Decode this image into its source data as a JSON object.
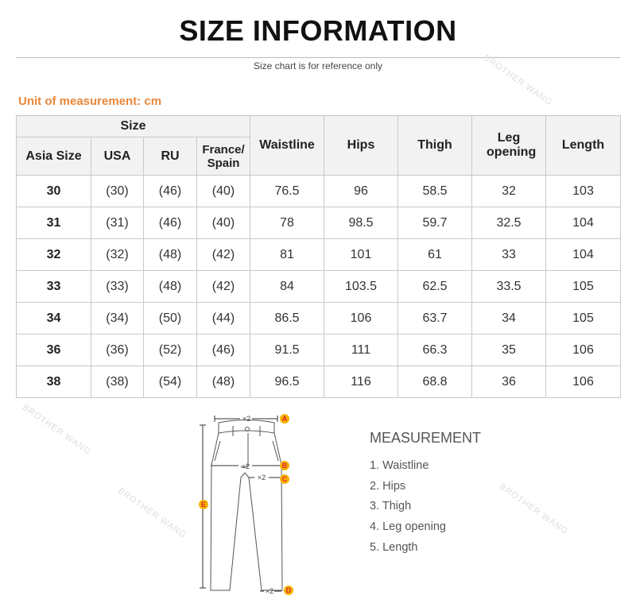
{
  "title": "SIZE INFORMATION",
  "subtitle": "Size chart is for reference only",
  "unit_label": "Unit of measurement: cm",
  "watermark": "BROTHER WANG",
  "accent_color": "#e8873a",
  "marker_color": "#f5b400",
  "table": {
    "size_group": "Size",
    "headers": [
      "Asia Size",
      "USA",
      "RU",
      "France/ Spain",
      "Waistline",
      "Hips",
      "Thigh",
      "Leg opening",
      "Length"
    ],
    "rows": [
      [
        "30",
        "(30)",
        "(46)",
        "(40)",
        "76.5",
        "96",
        "58.5",
        "32",
        "103"
      ],
      [
        "31",
        "(31)",
        "(46)",
        "(40)",
        "78",
        "98.5",
        "59.7",
        "32.5",
        "104"
      ],
      [
        "32",
        "(32)",
        "(48)",
        "(42)",
        "81",
        "101",
        "61",
        "33",
        "104"
      ],
      [
        "33",
        "(33)",
        "(48)",
        "(42)",
        "84",
        "103.5",
        "62.5",
        "33.5",
        "105"
      ],
      [
        "34",
        "(34)",
        "(50)",
        "(44)",
        "86.5",
        "106",
        "63.7",
        "34",
        "105"
      ],
      [
        "36",
        "(36)",
        "(52)",
        "(46)",
        "91.5",
        "111",
        "66.3",
        "35",
        "106"
      ],
      [
        "38",
        "(38)",
        "(54)",
        "(48)",
        "96.5",
        "116",
        "68.8",
        "36",
        "106"
      ]
    ]
  },
  "diagram": {
    "multiplier": "×2",
    "markers": [
      "A",
      "B",
      "C",
      "D",
      "E"
    ]
  },
  "measurement": {
    "title": "MEASUREMENT",
    "items": [
      "1. Waistline",
      "2. Hips",
      "3. Thigh",
      "4. Leg opening",
      "5. Length"
    ]
  }
}
